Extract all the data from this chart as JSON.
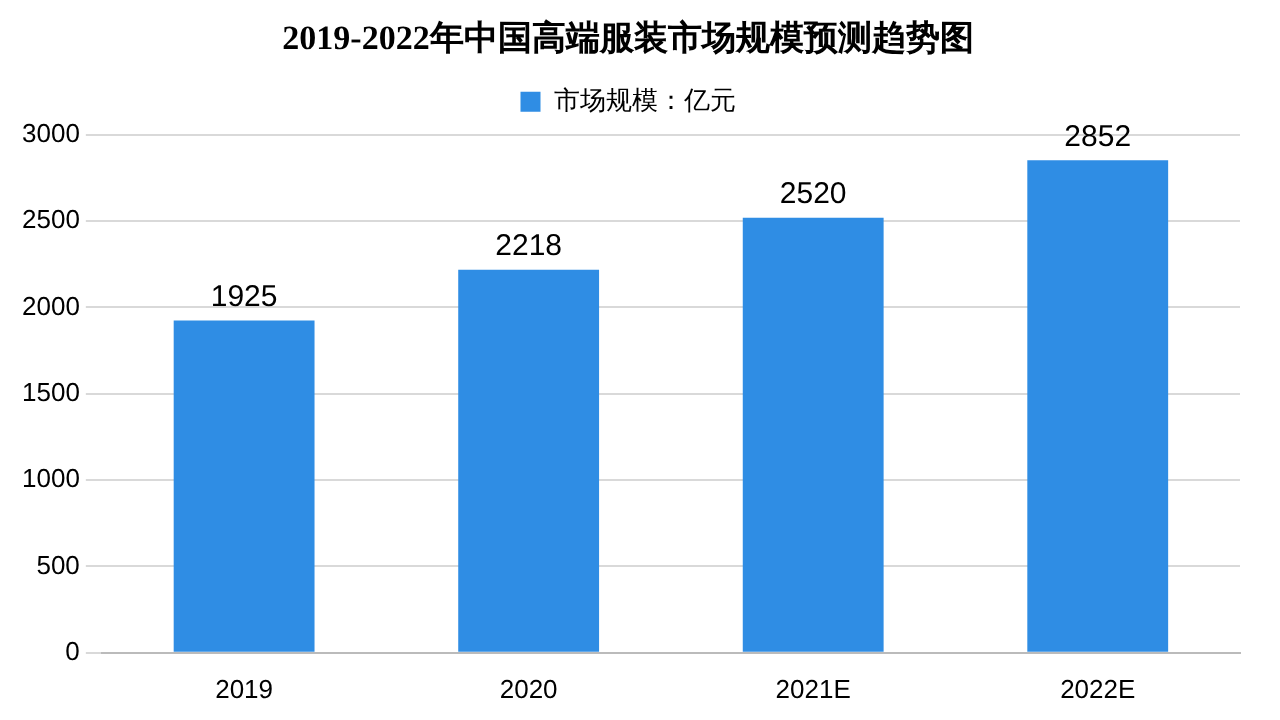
{
  "chart_data": {
    "type": "bar",
    "title": "2019-2022年中国高端服装市场规模预测趋势图",
    "categories": [
      "2019",
      "2020",
      "2021E",
      "2022E"
    ],
    "series": [
      {
        "name": "市场规模：亿元",
        "color": "#2f8de4",
        "values": [
          1925,
          2218,
          2520,
          2852
        ]
      }
    ],
    "ylim": [
      0,
      3000
    ],
    "yticks": [
      0,
      500,
      1000,
      1500,
      2000,
      2500,
      3000
    ],
    "grid": "y",
    "legend": "top",
    "data_labels": true
  }
}
